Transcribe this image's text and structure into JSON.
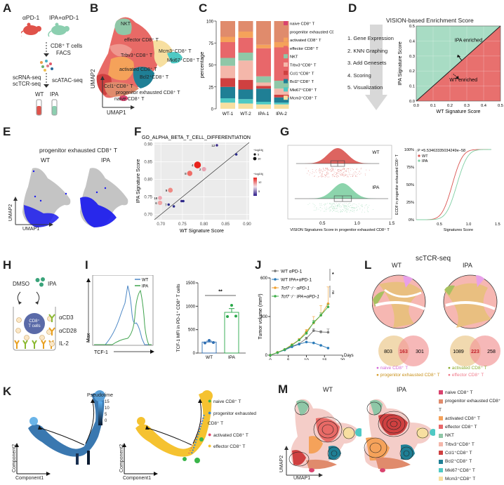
{
  "panelA": {
    "label": "A",
    "groups": [
      "αPD-1",
      "IPA+αPD-1"
    ],
    "step1": [
      "CD8⁺ T cells",
      "FACS"
    ],
    "step2_left": [
      "scRNA-seq",
      "scTCR-seq"
    ],
    "step2_right": "scATAC-seq",
    "tubes": [
      "WT",
      "IPA"
    ],
    "colors": {
      "wt": "#e0524a",
      "ipa": "#8ccfb0"
    }
  },
  "panelB": {
    "label": "B",
    "clusters": [
      "NKT",
      "effector CD8⁺ T",
      "Mcm3⁺CD8⁺ T",
      "Mki67⁺CD8⁺ T",
      "Trbv3⁺CD8⁺ T",
      "activated CD8⁺ T",
      "Bcl2⁺CD8⁺ T",
      "Ccl1⁺CD8⁺ T",
      "progenitor exhausted CD8⁺ T",
      "naive CD8⁺ T"
    ],
    "xlabel": "UMAP1",
    "ylabel": "UMAP2"
  },
  "panelC": {
    "label": "C",
    "chart_data": {
      "type": "bar",
      "stacked": true,
      "categories": [
        "WT-1",
        "WT-2",
        "IPA-1",
        "IPA-2"
      ],
      "ylabel": "percentage",
      "yticks": [
        "0",
        "25",
        "50",
        "75",
        "100"
      ],
      "ylim": [
        0,
        100
      ],
      "series": [
        {
          "name": "Mcm3⁺CD8⁺ T",
          "color": "#f7dfa0",
          "values": [
            7,
            6,
            5,
            5
          ]
        },
        {
          "name": "Mki67⁺CD8⁺ T",
          "color": "#4ec9c4",
          "values": [
            5,
            5,
            3,
            2
          ]
        },
        {
          "name": "Bcl2⁺CD8⁺ T",
          "color": "#1f7f95",
          "values": [
            13,
            11,
            15,
            6
          ]
        },
        {
          "name": "Ccl1⁺CD8⁺ T",
          "color": "#cf4040",
          "values": [
            10,
            11,
            3,
            3
          ]
        },
        {
          "name": "Trbv3⁺CD8⁺ T",
          "color": "#f4b7aa",
          "values": [
            14,
            22,
            4,
            7
          ]
        },
        {
          "name": "NKT",
          "color": "#8fc7a7",
          "values": [
            9,
            9,
            7,
            9
          ]
        },
        {
          "name": "effector CD8⁺ T",
          "color": "#e8676a",
          "values": [
            18,
            17,
            32,
            38
          ]
        },
        {
          "name": "activated CD8⁺ T",
          "color": "#f5a25a",
          "values": [
            6,
            7,
            4,
            6
          ]
        },
        {
          "name": "progenitor exhausted CD8⁺ T",
          "color": "#e08b6c",
          "values": [
            18,
            12,
            27,
            24
          ]
        },
        {
          "name": "naive CD8⁺ T",
          "color": "#d9436e",
          "values": [
            0,
            0,
            0,
            0
          ]
        }
      ],
      "legend": [
        "naive CD8⁺ T",
        "progenitor exhausted CD8⁺ T",
        "activated CD8⁺ T",
        "effector CD8⁺ T",
        "NKT",
        "Trbv3⁺CD8⁺ T",
        "Ccl1⁺CD8⁺ T",
        "Bcl2⁺CD8⁺ T",
        "Mki67⁺CD8⁺ T",
        "Mcm3⁺CD8⁺ T"
      ],
      "legend_colors": [
        "#d9436e",
        "#e08b6c",
        "#f5a25a",
        "#e8676a",
        "#8fc7a7",
        "#f4b7aa",
        "#cf4040",
        "#1f7f95",
        "#4ec9c4",
        "#f7dfa0"
      ]
    }
  },
  "panelD": {
    "label": "D",
    "title": "VISION-based Enrichment Score",
    "steps": [
      "1. Gene Expression",
      "2. KNN Graphing",
      "3. Add Genesets",
      "4. Scoring",
      "5. Visualization"
    ],
    "chart_data": {
      "type": "area",
      "xlabel": "WT Signature Score",
      "ylabel": "IPA Signature Score",
      "xlim": [
        0,
        0.5
      ],
      "ylim": [
        0,
        0.5
      ],
      "xticks": [
        "0.0",
        "0.1",
        "0.2",
        "0.3",
        "0.4",
        "0.5"
      ],
      "yticks": [
        "0.0",
        "0.1",
        "0.2",
        "0.3",
        "0.4",
        "0.5"
      ],
      "regions": [
        {
          "name": "IPA enriched",
          "color": "#a8dcc4"
        },
        {
          "name": "WT enriched",
          "color": "#e8706e"
        }
      ],
      "diagonal": [
        [
          0,
          0
        ],
        [
          0.5,
          0.5
        ]
      ]
    }
  },
  "panelE": {
    "label": "E",
    "title": "progenitor exhausted CD8⁺ T",
    "groups": [
      "WT",
      "IPA"
    ],
    "xlabel": "UMAP1",
    "ylabel": "UMAP2"
  },
  "panelF": {
    "label": "F",
    "chart_data": {
      "type": "scatter",
      "title": "GO_ALPHA_BETA_T_CELL_DIFFERENTIATION",
      "xlabel": "WT Signature Score",
      "ylabel": "IPA Signature Score",
      "xlim": [
        0.685,
        0.905
      ],
      "ylim": [
        0.685,
        0.905
      ],
      "xticks": [
        "0.70",
        "0.75",
        "0.80",
        "0.85",
        "0.90"
      ],
      "yticks": [
        "0.70",
        "0.75",
        "0.80",
        "0.85",
        "0.90"
      ],
      "size_legend_title": "−log10(p.value)",
      "size_legend": [
        "5",
        "10"
      ],
      "color_legend_title": "−log10(p.value)",
      "color_legend": [
        "12",
        "5"
      ],
      "points": [
        {
          "x": 0.83,
          "y": 0.897,
          "label": "12",
          "logp": 2,
          "color": "#3a2a8a"
        },
        {
          "x": 0.875,
          "y": 0.871,
          "label": "",
          "logp": 2,
          "color": "#2a2a8a"
        },
        {
          "x": 0.785,
          "y": 0.841,
          "label": "4",
          "logp": 13,
          "color": "#e8221c"
        },
        {
          "x": 0.8,
          "y": 0.829,
          "label": "2",
          "logp": 7,
          "color": "#e8a4b2"
        },
        {
          "x": 0.767,
          "y": 0.817,
          "label": "8",
          "logp": 9,
          "color": "#ef6c66"
        },
        {
          "x": 0.722,
          "y": 0.769,
          "label": "9",
          "logp": 8,
          "color": "#ef8a84"
        },
        {
          "x": 0.698,
          "y": 0.747,
          "label": "18",
          "logp": 6,
          "color": "#f0a4b0"
        },
        {
          "x": 0.698,
          "y": 0.733,
          "label": "6",
          "logp": 7,
          "color": "#f0a4a4"
        },
        {
          "x": 0.718,
          "y": 0.728,
          "label": "7",
          "logp": 2,
          "color": "#2a2a8a"
        },
        {
          "x": 0.73,
          "y": 0.723,
          "label": "",
          "logp": 2,
          "color": "#2a2a8a"
        },
        {
          "x": 0.748,
          "y": 0.738,
          "label": "",
          "logp": 2,
          "color": "#3a2a8a"
        },
        {
          "x": 0.752,
          "y": 0.738,
          "label": "",
          "logp": 2,
          "color": "#2a2a8a"
        }
      ]
    }
  },
  "panelG": {
    "label": "G",
    "left": {
      "chart_data": {
        "type": "raincloud",
        "xlabel": "VISION Signatures Score in progenitor exhausted CD8⁺ T",
        "xticks": [
          "0.5",
          "1.0",
          "1.5"
        ],
        "xlim": [
          0,
          1.5
        ],
        "groups": [
          {
            "name": "WT",
            "color": "#d9534f",
            "median": 0.72,
            "q1": 0.62,
            "q3": 0.82,
            "min": 0.12,
            "max": 1.32
          },
          {
            "name": "IPA",
            "color": "#7fcfa3",
            "median": 0.79,
            "q1": 0.67,
            "q3": 0.92,
            "min": 0.1,
            "max": 1.45
          }
        ]
      }
    },
    "right": {
      "chart_data": {
        "type": "line",
        "annotation": "P =5.53463335034249e−58",
        "xlabel": "Signatures Score",
        "ylabel": "ECDF in progenitor exhausted CD8⁺ T",
        "xticks": [
          "0.5",
          "1.0",
          "1.5"
        ],
        "yticks": [
          "0%",
          "25%",
          "50%",
          "75%",
          "100%"
        ],
        "xlim": [
          0.1,
          1.55
        ],
        "ylim": [
          0,
          1
        ],
        "series": [
          {
            "name": "WT",
            "color": "#d9534f",
            "mean": 0.72,
            "sd": 0.14
          },
          {
            "name": "IPA",
            "color": "#7fcfa3",
            "mean": 0.8,
            "sd": 0.145
          }
        ]
      }
    }
  },
  "panelH": {
    "label": "H",
    "dmso": "DMSO",
    "ipa": "IPA",
    "cell": [
      "CD8⁺",
      "T cells"
    ],
    "legend": [
      "αCD3",
      "αCD28",
      "IL-2"
    ]
  },
  "panelI": {
    "label": "I",
    "histogram": {
      "xlabel": "TCF-1",
      "ylabel": "Max",
      "legend": [
        {
          "name": "WT",
          "color": "#4a86c5"
        },
        {
          "name": "IPA",
          "color": "#3fa34d"
        }
      ]
    },
    "bar": {
      "chart_data": {
        "type": "bar",
        "categories": [
          "WT",
          "IPA"
        ],
        "values": [
          235,
          870
        ],
        "error": [
          20,
          80
        ],
        "points": [
          [
            215,
            270,
            225
          ],
          [
            780,
            1020,
            790
          ]
        ],
        "colors": [
          "#2f6fb3",
          "#2aa84a"
        ],
        "ylabel": "TCF-1 MFI in PD-1⁺ CD8⁺ T cells",
        "yticks": [
          "0",
          "500",
          "1000",
          "1500"
        ],
        "ylim": [
          0,
          1500
        ],
        "significance": "**"
      }
    }
  },
  "panelJ": {
    "label": "J",
    "chart_data": {
      "type": "line",
      "xlabel": "Days",
      "ylabel": "Tumor volume (mm³)",
      "xticks": [
        "0",
        "5",
        "10",
        "15",
        "20"
      ],
      "yticks": [
        "0",
        "300",
        "600"
      ],
      "xlim": [
        0,
        20
      ],
      "ylim": [
        0,
        600
      ],
      "x": [
        0,
        2,
        4,
        6,
        8,
        10,
        12,
        14,
        16
      ],
      "series": [
        {
          "name": "WT αPD-1",
          "color": "#777777",
          "values": [
            0,
            20,
            42,
            70,
            88,
            130,
            190,
            180,
            178
          ],
          "err": [
            0,
            2,
            3,
            5,
            6,
            10,
            15,
            10,
            25
          ]
        },
        {
          "name": "WT IPA+αPD-1",
          "color": "#2a7ab8",
          "values": [
            0,
            20,
            40,
            65,
            85,
            102,
            95,
            76,
            55
          ],
          "err": [
            0,
            2,
            3,
            4,
            5,
            6,
            5,
            5,
            5
          ]
        },
        {
          "name": "Tcf7⁻/⁻ αPD-1",
          "color": "#f0a030",
          "values": [
            0,
            22,
            45,
            82,
            120,
            185,
            250,
            310,
            400
          ],
          "err": [
            0,
            2,
            4,
            6,
            10,
            15,
            50,
            75,
            130
          ]
        },
        {
          "name": "Tcf7⁻/⁻ IPA+αPD-1",
          "color": "#3fae4a",
          "values": [
            0,
            20,
            44,
            78,
            118,
            170,
            255,
            310,
            375
          ],
          "err": [
            0,
            2,
            3,
            5,
            8,
            10,
            15,
            18,
            20
          ]
        }
      ],
      "significance": [
        "*",
        "ns"
      ]
    }
  },
  "panelK": {
    "label": "K",
    "colorbar_title": "Pseudotime",
    "colorbar_ticks": [
      "15",
      "10",
      "5",
      "0"
    ],
    "xlabel": "Component1",
    "ylabel": "Component2",
    "legend": [
      {
        "name": "naive CD8⁺ T",
        "color": "#3ab54a"
      },
      {
        "name": "progenitor exhausted CD8⁺ T",
        "color": "#3a86c8"
      },
      {
        "name": "activated CD8⁺ T",
        "color": "#e0456a"
      },
      {
        "name": "effector CD8⁺ T",
        "color": "#f5c230"
      }
    ]
  },
  "panelL": {
    "label": "L",
    "title": "scTCR-seq",
    "groups": [
      {
        "name": "WT",
        "venn": [
          "803",
          "163",
          "301"
        ]
      },
      {
        "name": "IPA",
        "venn": [
          "1089",
          "223",
          "258"
        ]
      }
    ],
    "legend_left": [
      {
        "name": "naive CD8⁺ T",
        "color": "#d46ad8"
      },
      {
        "name": "progenitor exhausted CD8⁺ T",
        "color": "#d8a030"
      }
    ],
    "legend_right": [
      {
        "name": "activated CD8⁺ T",
        "color": "#8aac30"
      },
      {
        "name": "effector CD8⁺ T",
        "color": "#f07a8a"
      }
    ]
  },
  "panelM": {
    "label": "M",
    "groups": [
      "WT",
      "IPA"
    ],
    "xlabel": "UMAP1",
    "ylabel": "UMAP2",
    "legend": [
      {
        "name": "naive CD8⁺ T",
        "color": "#d9436e"
      },
      {
        "name": "progenitor exhausted CD8⁺ T",
        "color": "#e08b6c"
      },
      {
        "name": "activated CD8⁺ T",
        "color": "#f5a25a"
      },
      {
        "name": "effector CD8⁺ T",
        "color": "#e8676a"
      },
      {
        "name": "NKT",
        "color": "#8fc7a7"
      },
      {
        "name": "Trbv3⁺CD8⁺ T",
        "color": "#f4b7aa"
      },
      {
        "name": "Ccl1⁺CD8⁺ T",
        "color": "#cf4040"
      },
      {
        "name": "Bcl2⁺CD8⁺ T",
        "color": "#1f7f95"
      },
      {
        "name": "Mki67⁺CD8⁺ T",
        "color": "#4ec9c4"
      },
      {
        "name": "Mcm3⁺CD8⁺ T",
        "color": "#f7dfa0"
      }
    ]
  }
}
